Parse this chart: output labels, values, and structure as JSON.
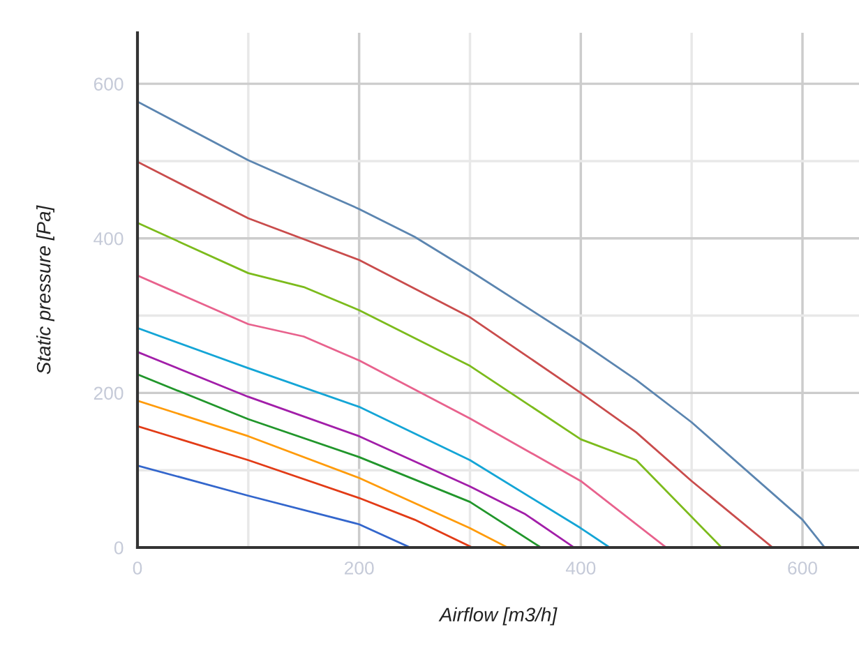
{
  "chart_data": {
    "type": "line",
    "xlabel": "Airflow [m3/h]",
    "ylabel": "Static pressure [Pa]",
    "xlim": [
      0,
      651
    ],
    "ylim": [
      0,
      666
    ],
    "xticks": [
      0,
      {
        "value": 100,
        "label": null
      },
      200,
      {
        "value": 300,
        "label": null
      },
      400,
      {
        "value": 500,
        "label": null
      },
      600
    ],
    "yticks": [
      0,
      {
        "value": 100,
        "label": null
      },
      200,
      {
        "value": 300,
        "label": null
      },
      400,
      {
        "value": 500,
        "label": null
      },
      600
    ],
    "grid": true,
    "marker": "none",
    "line_style": "solid",
    "series": [
      {
        "color": "#5b85b0",
        "x": [
          0,
          100,
          200,
          250,
          300,
          400,
          450,
          500,
          600,
          620
        ],
        "values": [
          577,
          501,
          438,
          402,
          358,
          266,
          217,
          162,
          36,
          0
        ]
      },
      {
        "color": "#c94c4c",
        "x": [
          0,
          100,
          200,
          300,
          400,
          450,
          500,
          573
        ],
        "values": [
          499,
          426,
          372,
          298,
          200,
          149,
          86,
          0
        ]
      },
      {
        "color": "#7cbb1c",
        "x": [
          0,
          100,
          150,
          200,
          300,
          400,
          450,
          527
        ],
        "values": [
          420,
          355,
          337,
          307,
          235,
          140,
          113,
          0
        ]
      },
      {
        "color": "#e8628d",
        "x": [
          0,
          100,
          150,
          200,
          300,
          400,
          477
        ],
        "values": [
          352,
          289,
          273,
          242,
          167,
          86,
          0
        ]
      },
      {
        "color": "#14a5d6",
        "x": [
          0,
          100,
          200,
          300,
          400,
          426
        ],
        "values": [
          284,
          232,
          182,
          113,
          25,
          0
        ]
      },
      {
        "color": "#a21ea9",
        "x": [
          0,
          100,
          200,
          300,
          350,
          394
        ],
        "values": [
          253,
          195,
          144,
          79,
          43,
          0
        ]
      },
      {
        "color": "#21962b",
        "x": [
          0,
          100,
          200,
          300,
          364
        ],
        "values": [
          224,
          166,
          117,
          59,
          0
        ]
      },
      {
        "color": "#ff9b0a",
        "x": [
          0,
          100,
          200,
          300,
          334
        ],
        "values": [
          190,
          144,
          90,
          25,
          0
        ]
      },
      {
        "color": "#e23b16",
        "x": [
          0,
          100,
          200,
          250,
          302
        ],
        "values": [
          157,
          113,
          64,
          36,
          0
        ]
      },
      {
        "color": "#3366cc",
        "x": [
          0,
          100,
          200,
          246
        ],
        "values": [
          106,
          67,
          30,
          0
        ]
      }
    ]
  }
}
